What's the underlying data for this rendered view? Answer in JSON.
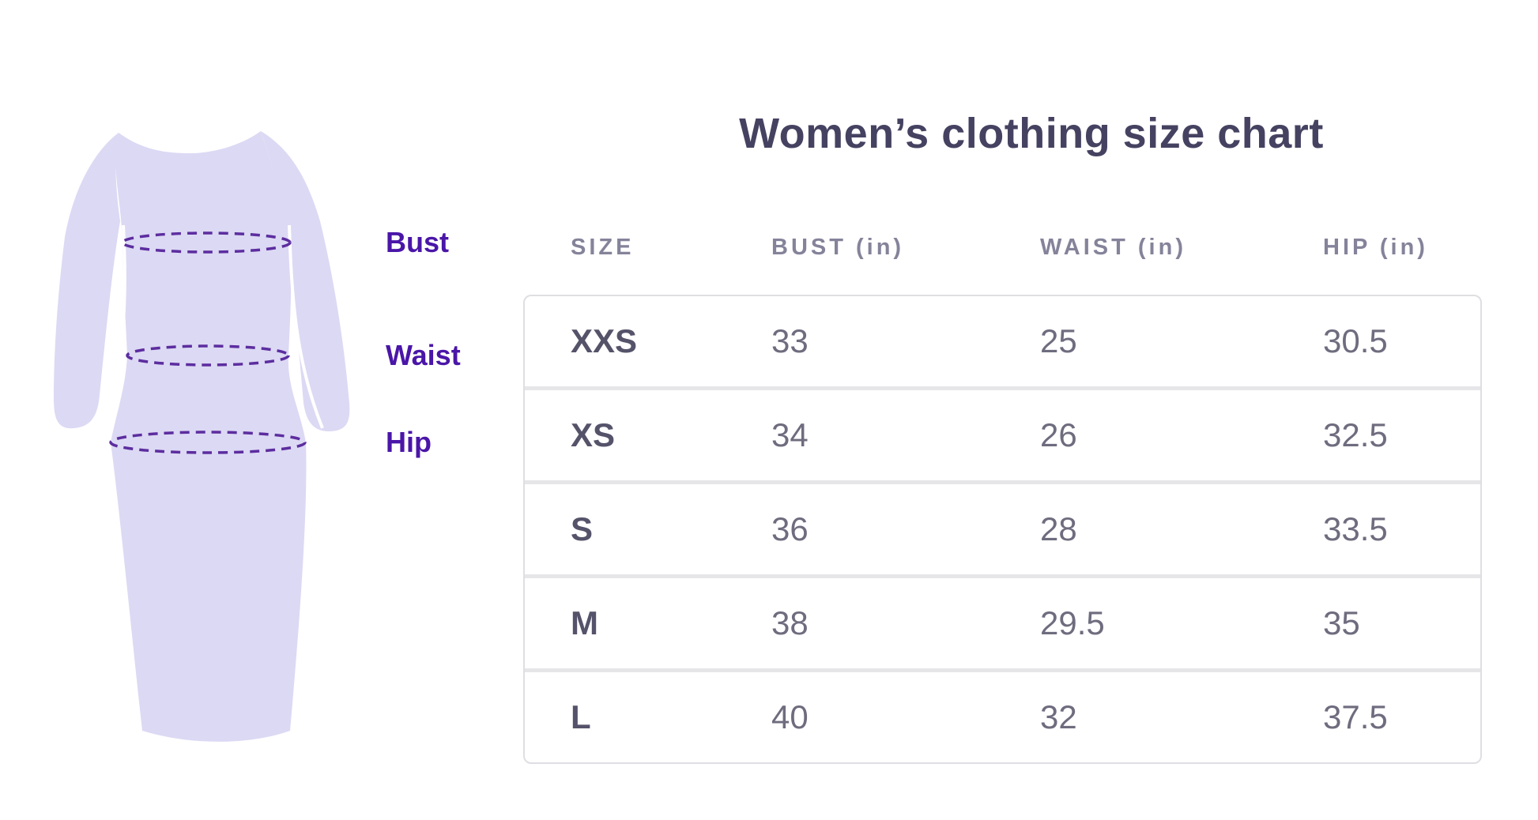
{
  "title": "Women’s clothing size chart",
  "figure": {
    "labels": {
      "bust": "Bust",
      "waist": "Waist",
      "hip": "Hip"
    },
    "dress_fill": "#dcd9f4",
    "measure_line_color": "#5c2d9f",
    "label_color": "#4a16a8"
  },
  "chart_data": {
    "type": "table",
    "title": "Women’s clothing size chart",
    "columns": [
      "SIZE",
      "BUST (in)",
      "WAIST (in)",
      "HIP (in)"
    ],
    "rows": [
      [
        "XXS",
        33,
        25,
        30.5
      ],
      [
        "XS",
        34,
        26,
        32.5
      ],
      [
        "S",
        36,
        28,
        33.5
      ],
      [
        "M",
        38,
        29.5,
        35
      ],
      [
        "L",
        40,
        32,
        37.5
      ]
    ],
    "figure_annotations": [
      "Bust",
      "Waist",
      "Hip"
    ]
  },
  "colors": {
    "title_text": "#454261",
    "header_text": "#84839a",
    "cell_text": "#6e6c7e",
    "size_text": "#55536a",
    "table_border": "#dfdfe3",
    "row_separator": "#e6e6e9",
    "background": "#ffffff"
  }
}
